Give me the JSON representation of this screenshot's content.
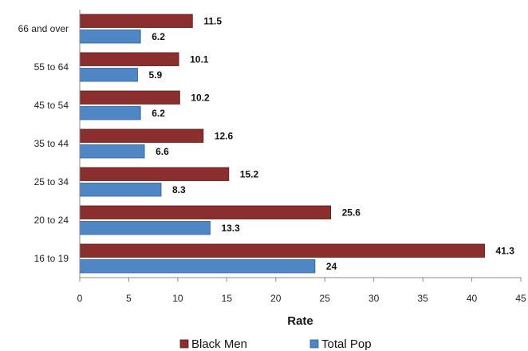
{
  "chart_data": {
    "type": "bar",
    "orientation": "horizontal",
    "categories": [
      "66 and over",
      "55 to 64",
      "45 to 54",
      "35 to 44",
      "25 to 34",
      "20 to 24",
      "16 to 19"
    ],
    "series": [
      {
        "name": "Black Men",
        "color": "#8B2E2E",
        "values": [
          11.5,
          10.1,
          10.2,
          12.6,
          15.2,
          25.6,
          41.3
        ],
        "labels": [
          "11.5",
          "10.1",
          "10.2",
          "12.6",
          "15.2",
          "25.6",
          "41.3"
        ]
      },
      {
        "name": "Total Pop",
        "color": "#4F86C6",
        "values": [
          6.2,
          5.9,
          6.2,
          6.6,
          8.3,
          13.3,
          24
        ],
        "labels": [
          "6.2",
          "5.9",
          "6.2",
          "6.6",
          "8.3",
          "13.3",
          "24"
        ]
      }
    ],
    "xlabel": "Rate",
    "xlim": [
      0,
      45
    ],
    "xticks": [
      "0",
      "5",
      "10",
      "15",
      "20",
      "25",
      "30",
      "35",
      "40",
      "45"
    ],
    "grid": false,
    "legend": "bottom"
  }
}
